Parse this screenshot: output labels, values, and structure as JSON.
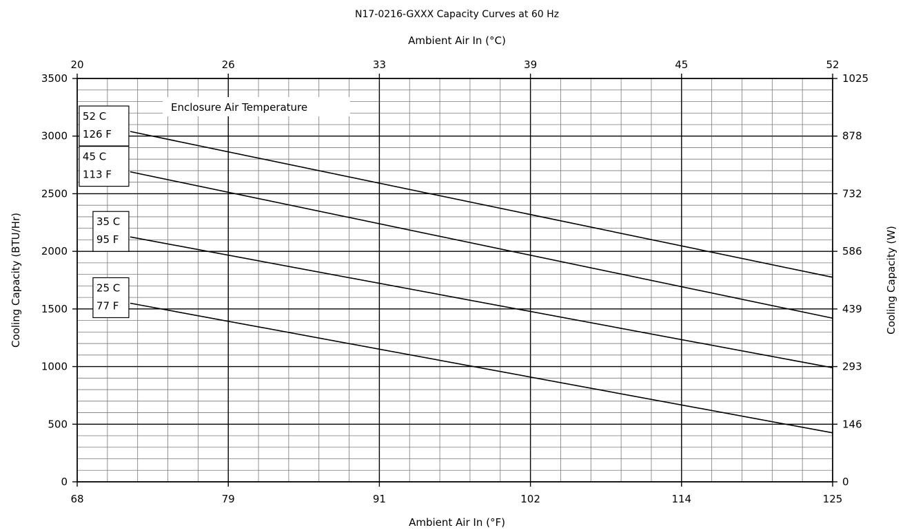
{
  "chart_data": {
    "type": "line",
    "title": "N17-0216-GXXX Capacity Curves at 60 Hz",
    "xlabel": "Ambient Air In (°F)",
    "x2label": "Ambient Air In (°C)",
    "ylabel": "Cooling Capacity (BTU/Hr)",
    "y2label": "Cooling Capacity (W)",
    "xlim": [
      68,
      125
    ],
    "ylim": [
      0,
      3500
    ],
    "x_ticks": [
      "68",
      "79",
      "91",
      "102",
      "114",
      "125"
    ],
    "x2_ticks": [
      "20",
      "26",
      "33",
      "39",
      "45",
      "52"
    ],
    "y_ticks": [
      "0",
      "500",
      "1000",
      "1500",
      "2000",
      "2500",
      "3000",
      "3500"
    ],
    "y2_ticks": [
      "0",
      "146",
      "293",
      "439",
      "586",
      "732",
      "878",
      "1025"
    ],
    "grid": true,
    "legend_title": "Enclosure Air Temperature",
    "series": [
      {
        "name_c": "52 C",
        "name_f": "126 F",
        "x": [
          72,
          125
        ],
        "y": [
          3040,
          1775
        ]
      },
      {
        "name_c": "45 C",
        "name_f": "113 F",
        "x": [
          72,
          125
        ],
        "y": [
          2690,
          1420
        ]
      },
      {
        "name_c": "35 C",
        "name_f": "95 F",
        "x": [
          72,
          125
        ],
        "y": [
          2125,
          990
        ]
      },
      {
        "name_c": "25 C",
        "name_f": "77 F",
        "x": [
          72,
          125
        ],
        "y": [
          1550,
          425
        ]
      }
    ],
    "line_color": "#000000"
  }
}
